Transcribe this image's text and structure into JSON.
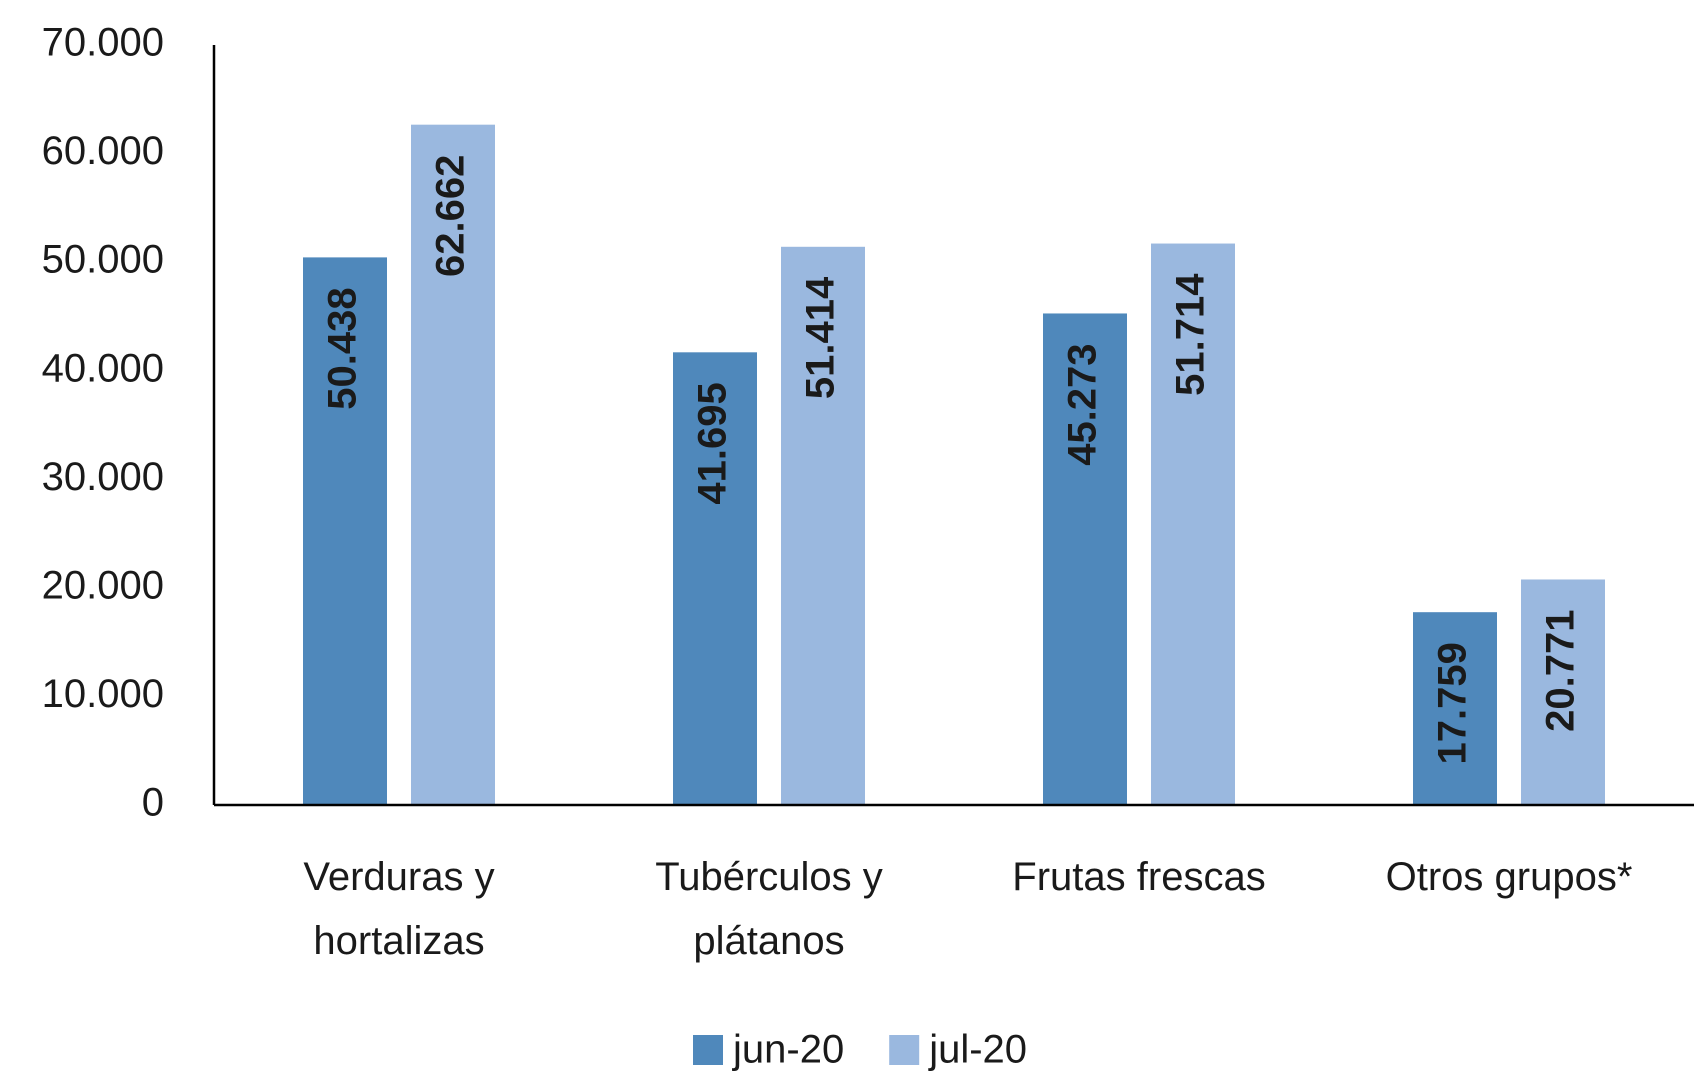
{
  "chart_data": {
    "type": "bar",
    "categories": [
      "Verduras y hortalizas",
      "Tubérculos y plátanos",
      "Frutas frescas",
      "Otros grupos*"
    ],
    "series": [
      {
        "name": "jun-20",
        "color": "#4f88bb",
        "values": [
          50438,
          41695,
          45273,
          17759
        ],
        "value_labels": [
          "50.438",
          "41.695",
          "45.273",
          "17.759"
        ]
      },
      {
        "name": "jul-20",
        "color": "#9ab8df",
        "values": [
          62662,
          51414,
          51714,
          20771
        ],
        "value_labels": [
          "62.662",
          "51.414",
          "51.714",
          "20.771"
        ]
      }
    ],
    "ylim": [
      0,
      70000
    ],
    "yticks": [
      0,
      {
        "value": 10000,
        "label": "10.000"
      },
      {
        "value": 20000,
        "label": "20.000"
      },
      {
        "value": 30000,
        "label": "30.000"
      },
      {
        "value": 40000,
        "label": "40.000"
      },
      {
        "value": 50000,
        "label": "50.000"
      },
      {
        "value": 60000,
        "label": "60.000"
      },
      {
        "value": 70000,
        "label": "70.000"
      }
    ],
    "grid": false,
    "legend": "bottom"
  }
}
